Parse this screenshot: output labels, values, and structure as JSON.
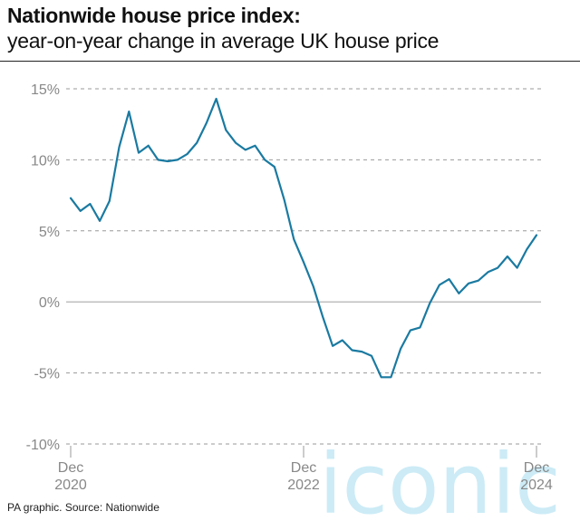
{
  "header": {
    "title": "Nationwide house price index:",
    "subtitle": "year-on-year change in average UK house price"
  },
  "footer": {
    "source": "PA graphic. Source: Nationwide"
  },
  "watermark": {
    "text": "iconic"
  },
  "colors": {
    "line": "#1a7aa1",
    "grid": "#999999",
    "zero_line": "#aaaaaa",
    "tick_text": "#888888",
    "watermark": "#8fd3ea"
  },
  "chart_data": {
    "type": "line",
    "title": "Nationwide house price index:",
    "subtitle": "year-on-year change in average UK house price",
    "xlabel": "",
    "ylabel": "",
    "ylim": [
      -10,
      15
    ],
    "yticks": [
      15,
      10,
      5,
      0,
      -5,
      -10
    ],
    "ytick_labels": [
      "15%",
      "10%",
      "5%",
      "0%",
      "-5%",
      "-10%"
    ],
    "xticks": [
      {
        "index": 0,
        "label": [
          "Dec",
          "2020"
        ]
      },
      {
        "index": 24,
        "label": [
          "Dec",
          "2022"
        ]
      },
      {
        "index": 48,
        "label": [
          "Dec",
          "2024"
        ]
      }
    ],
    "grid": "horizontal dashed",
    "legend": "none",
    "series": [
      {
        "values": [
          7.3,
          6.4,
          6.9,
          5.7,
          7.1,
          10.9,
          13.4,
          10.5,
          11.0,
          10.0,
          9.9,
          10.0,
          10.4,
          11.2,
          12.6,
          14.3,
          12.1,
          11.2,
          10.7,
          11.0,
          10.0,
          9.5,
          7.2,
          4.4,
          2.8,
          1.1,
          -1.1,
          -3.1,
          -2.7,
          -3.4,
          -3.5,
          -3.8,
          -5.3,
          -5.3,
          -3.3,
          -2.0,
          -1.8,
          -0.1,
          1.2,
          1.6,
          0.6,
          1.3,
          1.5,
          2.1,
          2.4,
          3.2,
          2.4,
          3.7,
          4.7
        ]
      }
    ]
  }
}
